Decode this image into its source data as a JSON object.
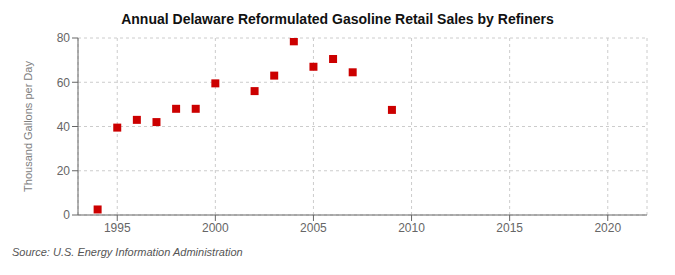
{
  "chart_data": {
    "type": "scatter",
    "title": "Annual Delaware Reformulated Gasoline Retail Sales by Refiners",
    "ylabel": "Thousand Gallons per Day",
    "annotations": [
      "Source: U.S. Energy Information Administration"
    ],
    "x": [
      1994,
      1995,
      1996,
      1997,
      1998,
      1999,
      2000,
      2002,
      2003,
      2004,
      2005,
      2006,
      2007,
      2009
    ],
    "values": [
      2.5,
      39.5,
      43.0,
      42.0,
      48.0,
      48.0,
      59.5,
      56.0,
      63.0,
      78.5,
      67.0,
      70.5,
      64.5,
      47.5
    ],
    "color": "#cc0000",
    "marker": "square",
    "xlim": [
      1993,
      2022
    ],
    "ylim": [
      0,
      80
    ],
    "xticks": [
      1995,
      2000,
      2005,
      2010,
      2015,
      2020
    ],
    "yticks": [
      0,
      20,
      40,
      60,
      80
    ],
    "grid": true
  }
}
